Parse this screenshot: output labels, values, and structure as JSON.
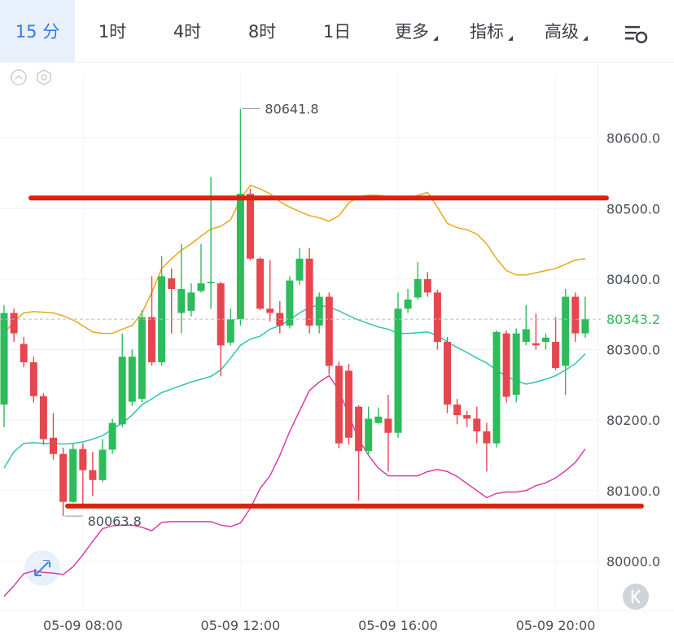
{
  "ui": {
    "tabs": [
      "15 分",
      "1时",
      "4时",
      "8时",
      "1日",
      "更多",
      "指标",
      "高级"
    ],
    "active_tab": 0,
    "dropdown_tabs": [
      5,
      6,
      7
    ]
  },
  "chart_data": {
    "type": "candlestick",
    "x": [
      null,
      null,
      null,
      null,
      null,
      null,
      null,
      null,
      "05-09 08:00",
      null,
      null,
      null,
      null,
      null,
      null,
      null,
      null,
      null,
      null,
      null,
      null,
      null,
      null,
      null,
      "05-09 12:00",
      null,
      null,
      null,
      null,
      null,
      null,
      null,
      null,
      null,
      null,
      null,
      null,
      null,
      null,
      null,
      "05-09 16:00",
      null,
      null,
      null,
      null,
      null,
      null,
      null,
      null,
      null,
      null,
      null,
      null,
      null,
      null,
      null,
      "05-09 20:00",
      null,
      null,
      null
    ],
    "open": [
      80222,
      80352,
      80308,
      80282,
      80234,
      80175,
      80152,
      80084,
      80159,
      80129,
      80115,
      80158,
      80194,
      80226,
      80230,
      80346,
      80282,
      80401,
      80352,
      80355,
      80383,
      80394,
      80394,
      80310,
      80343,
      80521,
      80429,
      80358,
      80352,
      80334,
      80398,
      80429,
      80334,
      80375,
      80277,
      80270,
      80219,
      80156,
      80196,
      80202,
      80182,
      80358,
      80374,
      80400,
      80381,
      80311,
      80222,
      80207,
      80202,
      80184,
      80167,
      80323,
      80236,
      80311,
      80309,
      80311,
      80311,
      80277,
      80375,
      80323
    ],
    "high": [
      80363,
      80358,
      80318,
      80290,
      80238,
      80210,
      80161,
      80167,
      80167,
      80155,
      80173,
      80202,
      80323,
      80300,
      80356,
      80404,
      80433,
      80415,
      80450,
      80394,
      80450,
      80545,
      80396,
      80358,
      80641.8,
      80528,
      80431,
      80427,
      80369,
      80404,
      80444,
      80444,
      80381,
      80381,
      80283,
      80280,
      80221,
      80219,
      80218,
      80236,
      80381,
      80386,
      80424,
      80410,
      80385,
      80318,
      80230,
      80213,
      80219,
      80196,
      80327,
      80327,
      80330,
      80363,
      80351,
      80323,
      80346,
      80386,
      80381,
      80375
    ],
    "low": [
      80190,
      80311,
      80275,
      80225,
      80165,
      80144,
      80063.8,
      80083,
      80080,
      80092,
      80112,
      80152,
      80190,
      80220,
      80225,
      80277,
      80277,
      80323,
      80323,
      80347,
      80381,
      80358,
      80262,
      80306,
      80334,
      80427,
      80356,
      80340,
      80323,
      80330,
      80392,
      80323,
      80323,
      80265,
      80160,
      80165,
      80086,
      80150,
      80195,
      80127,
      80175,
      80352,
      80371,
      80375,
      80300,
      80210,
      80194,
      80190,
      80167,
      80127,
      80161,
      80225,
      80225,
      80306,
      80300,
      80300,
      80271,
      80236,
      80311,
      80317
    ],
    "close": [
      80352,
      80323,
      80282,
      80234,
      80173,
      80152,
      80084,
      80159,
      80129,
      80115,
      80158,
      80196,
      80290,
      80290,
      80346,
      80282,
      80404,
      80386,
      80386,
      80381,
      80394,
      80396,
      80306,
      80343,
      80521,
      80429,
      80358,
      80352,
      80334,
      80398,
      80429,
      80334,
      80375,
      80277,
      80167,
      80175,
      80156,
      80202,
      80205,
      80182,
      80358,
      80371,
      80400,
      80381,
      80311,
      80222,
      80207,
      80202,
      80184,
      80167,
      80325,
      80233,
      80323,
      80329,
      80306,
      80317,
      80274,
      80375,
      80323,
      80343.2
    ],
    "up_color": "#2dbb5c",
    "down_color": "#e5474f",
    "series": [
      {
        "color": "#e8a81c",
        "values": [
          80323,
          80340,
          80352,
          80354,
          80353,
          80352,
          80348,
          80342,
          80334,
          80325,
          80323,
          80323,
          80329,
          80334,
          80352,
          80381,
          80415,
          80429,
          80441,
          80450,
          80461,
          80471,
          80475,
          80484,
          80513,
          80533,
          80528,
          80521,
          80510,
          80502,
          80496,
          80490,
          80487,
          80482,
          80490,
          80508,
          80517,
          80519,
          80519,
          80517,
          80513,
          80513,
          80519,
          80523,
          80502,
          80479,
          80473,
          80470,
          80464,
          80450,
          80429,
          80412,
          80406,
          80406,
          80409,
          80412,
          80415,
          80421,
          80427,
          80429
        ]
      },
      {
        "color": "#2ec4b0",
        "values": [
          80132,
          80155,
          80167,
          80168,
          80167,
          80167,
          80166,
          80167,
          80169,
          80173,
          80178,
          80187,
          80196,
          80207,
          80222,
          80230,
          80239,
          80244,
          80249,
          80254,
          80258,
          80262,
          80271,
          80288,
          80306,
          80315,
          80319,
          80329,
          80334,
          80342,
          80352,
          80360,
          80363,
          80360,
          80355,
          80348,
          80342,
          80337,
          80332,
          80329,
          80323,
          80323,
          80324,
          80325,
          80320,
          80311,
          80303,
          80296,
          80288,
          80281,
          80271,
          80262,
          80256,
          80251,
          80254,
          80258,
          80263,
          80271,
          80280,
          80294
        ]
      },
      {
        "color": "#d63fa8",
        "values": [
          79950,
          79965,
          79982,
          79986,
          79984,
          79983,
          79981,
          79992,
          80009,
          80028,
          80046,
          80050,
          80051,
          80051,
          80048,
          80043,
          80055,
          80056,
          80056,
          80056,
          80056,
          80056,
          80051,
          80049,
          80054,
          80075,
          80103,
          80121,
          80150,
          80184,
          80213,
          80242,
          80254,
          80263,
          80242,
          80207,
          80173,
          80150,
          80132,
          80121,
          80121,
          80121,
          80121,
          80127,
          80130,
          80127,
          80120,
          80110,
          80100,
          80090,
          80096,
          80098,
          80098,
          80100,
          80107,
          80111,
          80118,
          80128,
          80140,
          80159
        ]
      }
    ],
    "levels": [
      80515,
      80078
    ],
    "level_color": "#d9230f",
    "ylim": [
      79930,
      80692
    ],
    "yticks": [
      {
        "value": 80000,
        "label": "80000.0"
      },
      {
        "value": 80100,
        "label": "80100.0"
      },
      {
        "value": 80200,
        "label": "80200.0"
      },
      {
        "value": 80300,
        "label": "80300.0"
      },
      {
        "value": 80400,
        "label": "80400.0"
      },
      {
        "value": 80500,
        "label": "80500.0"
      },
      {
        "value": 80600,
        "label": "80600.0"
      }
    ],
    "grid": true
  }
}
